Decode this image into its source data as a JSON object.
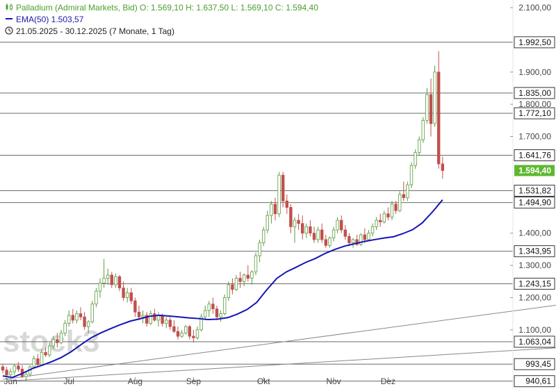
{
  "header": {
    "line1": "Palladium (Admiral Markets, Bid)  O: 1.569,10  H: 1.637,50  L: 1.569,10  C: 1.594,40",
    "line2": "EMA(50)  1.503,57",
    "line3": "21.05.2025 - 30.12.2025   (7 Monate, 1 Tag)",
    "icon1": "candlestick-icon",
    "icon2": "ema-line-icon",
    "icon3": "clock-icon"
  },
  "watermark": "stock3",
  "colors": {
    "up": "#5a9a3c",
    "down": "#c0504d",
    "ema": "#1414b4",
    "level_line": "#555555",
    "trend_line": "#888888",
    "price_badge": "#5fb830",
    "level_badge_border": "#333333"
  },
  "chart_data": {
    "type": "candlestick",
    "title": "Palladium (Admiral Markets, Bid)",
    "period": "21.05.2025 - 30.12.2025",
    "x_ticks": [
      "Jun",
      "Jul",
      "Aug",
      "Sep",
      "Okt",
      "Nov",
      "Dez"
    ],
    "y_ticks": [
      "2.100,00",
      "1.900,00",
      "1.800,00",
      "1.700,00",
      "1.400,00",
      "1.300,00",
      "1.200,00",
      "1.100,00"
    ],
    "ylim": [
      940,
      2125
    ],
    "last_close": "1.594,40",
    "ohlc": [
      [
        985,
        995,
        965,
        975
      ],
      [
        975,
        985,
        955,
        960
      ],
      [
        960,
        980,
        950,
        970
      ],
      [
        970,
        995,
        960,
        988
      ],
      [
        988,
        1000,
        970,
        978
      ],
      [
        978,
        990,
        950,
        955
      ],
      [
        955,
        970,
        940,
        962
      ],
      [
        962,
        990,
        955,
        985
      ],
      [
        985,
        1020,
        980,
        1010
      ],
      [
        1010,
        1025,
        985,
        992
      ],
      [
        992,
        1040,
        988,
        1030
      ],
      [
        1030,
        1045,
        1015,
        1022
      ],
      [
        1022,
        1060,
        1015,
        1050
      ],
      [
        1050,
        1080,
        1040,
        1070
      ],
      [
        1070,
        1090,
        1045,
        1060
      ],
      [
        1060,
        1100,
        1055,
        1090
      ],
      [
        1090,
        1130,
        1080,
        1120
      ],
      [
        1120,
        1160,
        1110,
        1145
      ],
      [
        1145,
        1165,
        1120,
        1130
      ],
      [
        1130,
        1160,
        1120,
        1150
      ],
      [
        1150,
        1170,
        1130,
        1140
      ],
      [
        1140,
        1155,
        1100,
        1110
      ],
      [
        1110,
        1130,
        1090,
        1125
      ],
      [
        1125,
        1190,
        1120,
        1180
      ],
      [
        1180,
        1230,
        1170,
        1220
      ],
      [
        1220,
        1260,
        1200,
        1245
      ],
      [
        1245,
        1320,
        1230,
        1260
      ],
      [
        1260,
        1290,
        1240,
        1270
      ],
      [
        1270,
        1280,
        1230,
        1240
      ],
      [
        1240,
        1275,
        1230,
        1265
      ],
      [
        1265,
        1270,
        1220,
        1230
      ],
      [
        1230,
        1250,
        1190,
        1200
      ],
      [
        1200,
        1230,
        1185,
        1215
      ],
      [
        1215,
        1230,
        1180,
        1190
      ],
      [
        1190,
        1200,
        1140,
        1155
      ],
      [
        1155,
        1175,
        1130,
        1140
      ],
      [
        1140,
        1160,
        1120,
        1145
      ],
      [
        1145,
        1155,
        1110,
        1120
      ],
      [
        1120,
        1160,
        1115,
        1150
      ],
      [
        1150,
        1165,
        1125,
        1130
      ],
      [
        1130,
        1155,
        1110,
        1145
      ],
      [
        1145,
        1150,
        1110,
        1120
      ],
      [
        1120,
        1140,
        1105,
        1130
      ],
      [
        1130,
        1140,
        1100,
        1110
      ],
      [
        1110,
        1130,
        1090,
        1095
      ],
      [
        1095,
        1110,
        1070,
        1080
      ],
      [
        1080,
        1100,
        1075,
        1090
      ],
      [
        1090,
        1115,
        1085,
        1110
      ],
      [
        1110,
        1115,
        1070,
        1080
      ],
      [
        1080,
        1100,
        1060,
        1075
      ],
      [
        1075,
        1110,
        1070,
        1100
      ],
      [
        1100,
        1150,
        1095,
        1140
      ],
      [
        1140,
        1175,
        1130,
        1160
      ],
      [
        1160,
        1190,
        1140,
        1180
      ],
      [
        1180,
        1200,
        1150,
        1165
      ],
      [
        1165,
        1175,
        1130,
        1140
      ],
      [
        1140,
        1160,
        1125,
        1150
      ],
      [
        1150,
        1210,
        1145,
        1200
      ],
      [
        1200,
        1250,
        1190,
        1240
      ],
      [
        1240,
        1260,
        1210,
        1225
      ],
      [
        1225,
        1270,
        1220,
        1260
      ],
      [
        1260,
        1280,
        1230,
        1250
      ],
      [
        1250,
        1275,
        1235,
        1270
      ],
      [
        1270,
        1300,
        1250,
        1260
      ],
      [
        1260,
        1285,
        1240,
        1280
      ],
      [
        1280,
        1340,
        1270,
        1330
      ],
      [
        1330,
        1380,
        1310,
        1370
      ],
      [
        1370,
        1420,
        1360,
        1410
      ],
      [
        1410,
        1470,
        1400,
        1455
      ],
      [
        1455,
        1500,
        1430,
        1490
      ],
      [
        1490,
        1510,
        1440,
        1460
      ],
      [
        1460,
        1590,
        1450,
        1580
      ],
      [
        1580,
        1590,
        1480,
        1500
      ],
      [
        1500,
        1520,
        1460,
        1480
      ],
      [
        1480,
        1490,
        1400,
        1420
      ],
      [
        1420,
        1450,
        1370,
        1440
      ],
      [
        1440,
        1460,
        1410,
        1430
      ],
      [
        1430,
        1455,
        1380,
        1400
      ],
      [
        1400,
        1430,
        1385,
        1420
      ],
      [
        1420,
        1440,
        1390,
        1400
      ],
      [
        1400,
        1420,
        1370,
        1380
      ],
      [
        1380,
        1420,
        1370,
        1410
      ],
      [
        1410,
        1430,
        1370,
        1380
      ],
      [
        1380,
        1395,
        1355,
        1362
      ],
      [
        1362,
        1390,
        1355,
        1385
      ],
      [
        1385,
        1420,
        1375,
        1410
      ],
      [
        1410,
        1450,
        1400,
        1440
      ],
      [
        1440,
        1455,
        1400,
        1410
      ],
      [
        1410,
        1425,
        1380,
        1390
      ],
      [
        1390,
        1400,
        1360,
        1370
      ],
      [
        1370,
        1385,
        1355,
        1380
      ],
      [
        1380,
        1395,
        1360,
        1365
      ],
      [
        1365,
        1400,
        1360,
        1395
      ],
      [
        1395,
        1415,
        1370,
        1380
      ],
      [
        1380,
        1410,
        1375,
        1400
      ],
      [
        1400,
        1430,
        1390,
        1420
      ],
      [
        1420,
        1450,
        1410,
        1440
      ],
      [
        1440,
        1460,
        1420,
        1435
      ],
      [
        1435,
        1470,
        1430,
        1460
      ],
      [
        1460,
        1480,
        1440,
        1450
      ],
      [
        1450,
        1500,
        1440,
        1490
      ],
      [
        1490,
        1500,
        1460,
        1470
      ],
      [
        1470,
        1530,
        1465,
        1520
      ],
      [
        1520,
        1560,
        1500,
        1510
      ],
      [
        1510,
        1560,
        1500,
        1550
      ],
      [
        1550,
        1620,
        1540,
        1610
      ],
      [
        1610,
        1660,
        1600,
        1650
      ],
      [
        1650,
        1700,
        1640,
        1690
      ],
      [
        1690,
        1760,
        1680,
        1750
      ],
      [
        1750,
        1850,
        1740,
        1830
      ],
      [
        1830,
        1880,
        1700,
        1740
      ],
      [
        1740,
        1920,
        1730,
        1900
      ],
      [
        1900,
        1965,
        1600,
        1615
      ],
      [
        1615,
        1637.5,
        1569.1,
        1594.4
      ]
    ],
    "ema50": [
      [
        0,
        957
      ],
      [
        8,
        952
      ],
      [
        16,
        964
      ],
      [
        25,
        980
      ],
      [
        33,
        990
      ],
      [
        41,
        1001
      ],
      [
        49,
        1014
      ],
      [
        57,
        1031
      ],
      [
        66,
        1055
      ],
      [
        74,
        1075
      ],
      [
        82,
        1090
      ],
      [
        90,
        1103
      ],
      [
        98,
        1115
      ],
      [
        107,
        1127
      ],
      [
        115,
        1134
      ],
      [
        123,
        1142
      ],
      [
        131,
        1145
      ],
      [
        139,
        1143
      ],
      [
        148,
        1140
      ],
      [
        156,
        1137
      ],
      [
        164,
        1135
      ],
      [
        172,
        1132
      ],
      [
        180,
        1133
      ],
      [
        189,
        1138
      ],
      [
        197,
        1149
      ],
      [
        205,
        1163
      ],
      [
        213,
        1185
      ],
      [
        221,
        1222
      ],
      [
        230,
        1260
      ],
      [
        238,
        1280
      ],
      [
        246,
        1294
      ],
      [
        254,
        1309
      ],
      [
        262,
        1321
      ],
      [
        271,
        1338
      ],
      [
        279,
        1350
      ],
      [
        287,
        1360
      ],
      [
        295,
        1367
      ],
      [
        303,
        1374
      ],
      [
        312,
        1380
      ],
      [
        320,
        1385
      ],
      [
        328,
        1389
      ],
      [
        336,
        1399
      ],
      [
        344,
        1411
      ],
      [
        352,
        1432
      ],
      [
        361,
        1468
      ],
      [
        369,
        1503.57
      ]
    ],
    "levels": [
      "1.992,50",
      "1.835,00",
      "1.772,10",
      "1.641,76",
      "1.531,82",
      "1.494,90",
      "1.343,95",
      "1.243,15",
      "1.063,04",
      "993,45",
      "940,61"
    ],
    "level_values": [
      1992.5,
      1835.0,
      1772.1,
      1641.76,
      1531.82,
      1494.9,
      1343.95,
      1243.15,
      1063.04,
      993.45,
      940.61
    ],
    "trend_lines": [
      {
        "from": [
          0,
          946
        ],
        "to": [
          427,
          1638
        ]
      },
      {
        "from": [
          0,
          940
        ],
        "to": [
          462,
          1278
        ]
      },
      {
        "from": [
          255,
          1354
        ],
        "to": [
          462,
          1272
        ]
      },
      {
        "from": [
          248,
          1589
        ],
        "to": [
          462,
          1011
        ]
      },
      {
        "from": [
          297,
          1497
        ],
        "to": [
          426,
          1497
        ]
      }
    ]
  }
}
